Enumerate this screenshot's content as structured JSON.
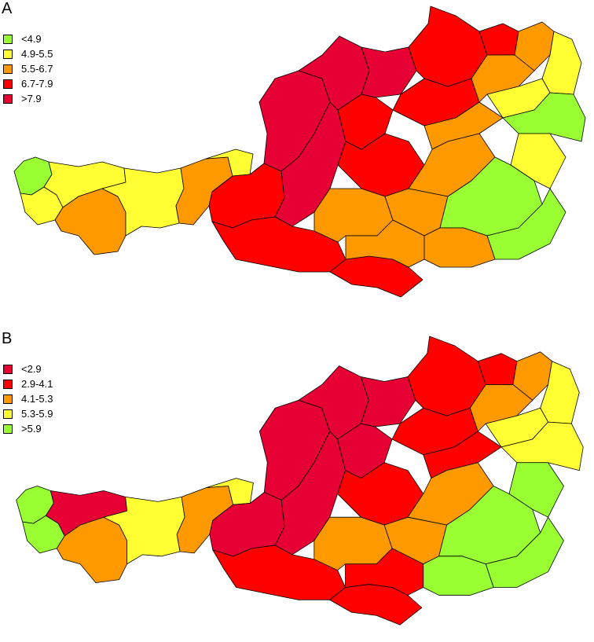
{
  "panels": [
    {
      "label": "A",
      "legend": [
        {
          "label": "<4.9",
          "color": "#99ff33"
        },
        {
          "label": "4.9-5.5",
          "color": "#ffff33"
        },
        {
          "label": "5.5-6.7",
          "color": "#ff9900"
        },
        {
          "label": "6.7-7.9",
          "color": "#ff0000"
        },
        {
          "label": ">7.9",
          "color": "#e60033"
        }
      ]
    },
    {
      "label": "B",
      "legend": [
        {
          "label": "<2.9",
          "color": "#e60033"
        },
        {
          "label": "2.9-4.1",
          "color": "#ff0000"
        },
        {
          "label": "4.1-5.3",
          "color": "#ff9900"
        },
        {
          "label": "5.3-5.9",
          "color": "#ffff33"
        },
        {
          "label": ">5.9",
          "color": "#99ff33"
        }
      ]
    }
  ]
}
